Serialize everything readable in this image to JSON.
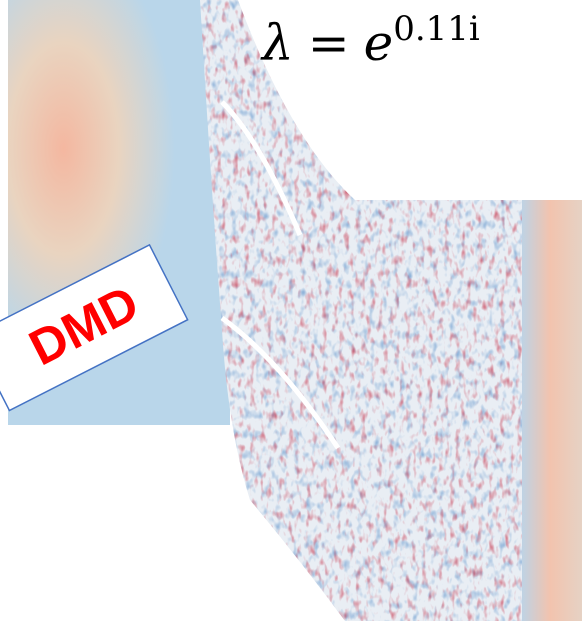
{
  "equation": {
    "lhs": "λ",
    "operator": "=",
    "base": "e",
    "exponent": "0.11i"
  },
  "label": "DMD"
}
